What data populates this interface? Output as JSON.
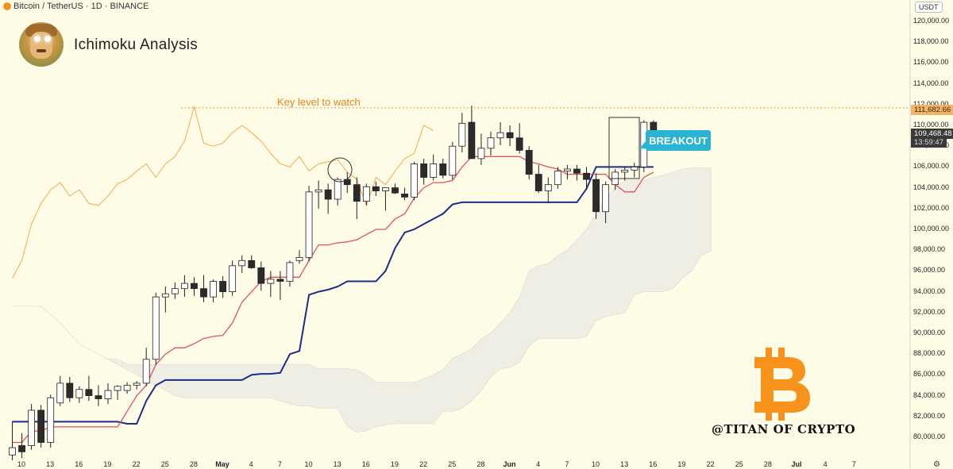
{
  "header": {
    "symbol": "Bitcoin / TetherUS · 1D · BINANCE"
  },
  "title": "Ichimoku Analysis",
  "annotations": {
    "key_level": "Key level to watch",
    "breakout": "BREAKOUT",
    "watermark": "@TITAN OF CRYPTO"
  },
  "axis_unit": "USDT",
  "colors": {
    "background": "#fefbe6",
    "bull_body": "#ffffff",
    "bear_body": "#2b2b2b",
    "tenkan": "#e0506b",
    "kijun": "#1c2d8a",
    "chikou": "#f5ab4e",
    "cloud": "#efeee4",
    "key_level": "#e5851c",
    "breakout": "#2ab4d4",
    "bitcoin_logo": "#f7931a"
  },
  "price_tags": {
    "key_level": "111,682.66",
    "current": "109,468.48",
    "countdown": "13:59:47"
  },
  "chart_data": {
    "type": "candlestick",
    "ylim": [
      78000,
      122000
    ],
    "y_ticks": [
      "80,000.00",
      "82,000.00",
      "84,000.00",
      "86,000.00",
      "88,000.00",
      "90,000.00",
      "92,000.00",
      "94,000.00",
      "96,000.00",
      "98,000.00",
      "100,000.00",
      "102,000.00",
      "104,000.00",
      "106,000.00",
      "108,000.00",
      "110,000.00",
      "112,000.00",
      "114,000.00",
      "116,000.00",
      "118,000.00",
      "120,000.00"
    ],
    "x_ticks": [
      "10",
      "13",
      "16",
      "19",
      "22",
      "25",
      "28",
      "May",
      "4",
      "7",
      "10",
      "13",
      "16",
      "19",
      "22",
      "25",
      "28",
      "Jun",
      "4",
      "7",
      "10",
      "13",
      "16",
      "19",
      "22",
      "25",
      "28",
      "Jul",
      "4",
      "7"
    ],
    "key_level": 111682.66,
    "candles": [
      {
        "o": 78300,
        "h": 81500,
        "l": 77800,
        "c": 79000
      },
      {
        "o": 79200,
        "h": 80400,
        "l": 78000,
        "c": 78600
      },
      {
        "o": 79200,
        "h": 83200,
        "l": 78800,
        "c": 82600
      },
      {
        "o": 82600,
        "h": 83100,
        "l": 79000,
        "c": 79500
      },
      {
        "o": 79500,
        "h": 84100,
        "l": 79000,
        "c": 83800
      },
      {
        "o": 83300,
        "h": 85900,
        "l": 83000,
        "c": 85200
      },
      {
        "o": 85200,
        "h": 85800,
        "l": 83400,
        "c": 83800
      },
      {
        "o": 83800,
        "h": 84900,
        "l": 83300,
        "c": 84600
      },
      {
        "o": 84600,
        "h": 85900,
        "l": 83500,
        "c": 84000
      },
      {
        "o": 84000,
        "h": 85000,
        "l": 83000,
        "c": 83700
      },
      {
        "o": 83700,
        "h": 85200,
        "l": 83200,
        "c": 84500
      },
      {
        "o": 84500,
        "h": 85000,
        "l": 83600,
        "c": 84900
      },
      {
        "o": 84500,
        "h": 85300,
        "l": 84200,
        "c": 85000
      },
      {
        "o": 85000,
        "h": 85400,
        "l": 84600,
        "c": 85200
      },
      {
        "o": 85200,
        "h": 88600,
        "l": 84900,
        "c": 87500
      },
      {
        "o": 87500,
        "h": 93900,
        "l": 87000,
        "c": 93500
      },
      {
        "o": 93500,
        "h": 94500,
        "l": 92000,
        "c": 93800
      },
      {
        "o": 93800,
        "h": 94900,
        "l": 93300,
        "c": 94300
      },
      {
        "o": 94300,
        "h": 95600,
        "l": 93500,
        "c": 94800
      },
      {
        "o": 94800,
        "h": 95400,
        "l": 93600,
        "c": 94300
      },
      {
        "o": 94300,
        "h": 95600,
        "l": 93000,
        "c": 93500
      },
      {
        "o": 93500,
        "h": 95200,
        "l": 93000,
        "c": 95000
      },
      {
        "o": 95000,
        "h": 95500,
        "l": 93400,
        "c": 94000
      },
      {
        "o": 94000,
        "h": 97000,
        "l": 93600,
        "c": 96500
      },
      {
        "o": 96500,
        "h": 97500,
        "l": 95800,
        "c": 97000
      },
      {
        "o": 97000,
        "h": 97500,
        "l": 96200,
        "c": 96300
      },
      {
        "o": 96300,
        "h": 96900,
        "l": 94100,
        "c": 94800
      },
      {
        "o": 94800,
        "h": 96000,
        "l": 93500,
        "c": 95200
      },
      {
        "o": 95200,
        "h": 96000,
        "l": 93200,
        "c": 95000
      },
      {
        "o": 95000,
        "h": 97000,
        "l": 94500,
        "c": 96800
      },
      {
        "o": 97000,
        "h": 98000,
        "l": 96700,
        "c": 97300
      },
      {
        "o": 97300,
        "h": 104200,
        "l": 96900,
        "c": 103600
      },
      {
        "o": 103600,
        "h": 104700,
        "l": 102000,
        "c": 103800
      },
      {
        "o": 103800,
        "h": 104400,
        "l": 101500,
        "c": 102900
      },
      {
        "o": 102900,
        "h": 105000,
        "l": 102300,
        "c": 104800
      },
      {
        "o": 104800,
        "h": 105500,
        "l": 103500,
        "c": 104300
      },
      {
        "o": 104300,
        "h": 105000,
        "l": 101000,
        "c": 102700
      },
      {
        "o": 102700,
        "h": 104400,
        "l": 102300,
        "c": 104100
      },
      {
        "o": 104100,
        "h": 104600,
        "l": 103200,
        "c": 103700
      },
      {
        "o": 103700,
        "h": 104000,
        "l": 101800,
        "c": 104000
      },
      {
        "o": 104000,
        "h": 104400,
        "l": 103400,
        "c": 103500
      },
      {
        "o": 103400,
        "h": 104000,
        "l": 102800,
        "c": 103100
      },
      {
        "o": 103100,
        "h": 106500,
        "l": 102800,
        "c": 106300
      },
      {
        "o": 106300,
        "h": 106800,
        "l": 104300,
        "c": 105000
      },
      {
        "o": 105000,
        "h": 107200,
        "l": 104700,
        "c": 106300
      },
      {
        "o": 106300,
        "h": 106800,
        "l": 104900,
        "c": 105200
      },
      {
        "o": 105200,
        "h": 108400,
        "l": 104800,
        "c": 108000
      },
      {
        "o": 108000,
        "h": 111200,
        "l": 107400,
        "c": 110200
      },
      {
        "o": 110300,
        "h": 111900,
        "l": 106800,
        "c": 106800
      },
      {
        "o": 106800,
        "h": 109200,
        "l": 106200,
        "c": 107800
      },
      {
        "o": 107800,
        "h": 109400,
        "l": 107100,
        "c": 108800
      },
      {
        "o": 108800,
        "h": 110300,
        "l": 108100,
        "c": 109300
      },
      {
        "o": 109300,
        "h": 110000,
        "l": 108000,
        "c": 108800
      },
      {
        "o": 108800,
        "h": 110200,
        "l": 107300,
        "c": 107600
      },
      {
        "o": 107600,
        "h": 108000,
        "l": 104800,
        "c": 105300
      },
      {
        "o": 105300,
        "h": 106200,
        "l": 103500,
        "c": 103700
      },
      {
        "o": 103700,
        "h": 105000,
        "l": 102500,
        "c": 104300
      },
      {
        "o": 104300,
        "h": 106000,
        "l": 103900,
        "c": 105600
      },
      {
        "o": 105600,
        "h": 106200,
        "l": 104800,
        "c": 105800
      },
      {
        "o": 105800,
        "h": 106200,
        "l": 104700,
        "c": 105400
      },
      {
        "o": 105400,
        "h": 106000,
        "l": 103800,
        "c": 104800
      },
      {
        "o": 104800,
        "h": 105400,
        "l": 101000,
        "c": 101700
      },
      {
        "o": 101700,
        "h": 104600,
        "l": 100600,
        "c": 104300
      },
      {
        "o": 104300,
        "h": 105800,
        "l": 103800,
        "c": 105500
      },
      {
        "o": 105500,
        "h": 106000,
        "l": 104700,
        "c": 105700
      },
      {
        "o": 105700,
        "h": 106400,
        "l": 105000,
        "c": 106000
      },
      {
        "o": 106000,
        "h": 110500,
        "l": 105500,
        "c": 110300
      },
      {
        "o": 110300,
        "h": 110500,
        "l": 109300,
        "c": 109500
      }
    ],
    "tenkan": [
      79500,
      79500,
      80600,
      80600,
      81000,
      81000,
      81000,
      81000,
      81000,
      81000,
      81000,
      81000,
      82500,
      84000,
      85000,
      87000,
      88000,
      88600,
      88600,
      89000,
      89500,
      89700,
      89800,
      91000,
      93000,
      94000,
      95000,
      95400,
      95400,
      95400,
      95400,
      97000,
      98500,
      98500,
      98700,
      98800,
      99000,
      99500,
      100000,
      100000,
      101000,
      101500,
      103000,
      104000,
      104500,
      104500,
      104700,
      106000,
      107000,
      107000,
      107000,
      107000,
      107000,
      107000,
      106500,
      106300,
      106000,
      105800,
      105300,
      105300,
      105300,
      105300,
      105300,
      104300,
      103600,
      103600,
      105000,
      105500
    ],
    "kijun": [
      81500,
      81500,
      81500,
      81500,
      81500,
      81500,
      81500,
      81500,
      81500,
      81500,
      81500,
      81500,
      81300,
      81300,
      83500,
      85000,
      85500,
      85500,
      85500,
      85500,
      85500,
      85500,
      85500,
      85500,
      85500,
      86000,
      86100,
      86100,
      86200,
      88000,
      88300,
      93700,
      94000,
      94200,
      94500,
      95000,
      95000,
      95000,
      95000,
      96000,
      98200,
      99700,
      100000,
      100500,
      101000,
      101500,
      102400,
      102600,
      102600,
      102600,
      102600,
      102600,
      102600,
      102600,
      102600,
      102600,
      102600,
      102600,
      102600,
      102600,
      103900,
      106000,
      106000,
      106000,
      106000,
      106000,
      106000,
      106000
    ],
    "chikou": [
      95300,
      97000,
      100500,
      102500,
      103800,
      104500,
      103200,
      103800,
      102500,
      102300,
      103200,
      104400,
      104800,
      105600,
      106300,
      105000,
      106300,
      107000,
      108500,
      111800,
      108300,
      108000,
      108300,
      109300,
      110000,
      109300,
      108500,
      107300,
      106300,
      106000,
      107000,
      105600,
      106300,
      106500,
      106700,
      105500,
      104800,
      102300,
      105000,
      104300,
      105600,
      106800,
      107300,
      110000,
      109500
    ],
    "cloud_top": [
      92600,
      92600,
      92600,
      92600,
      91800,
      91000,
      90000,
      89000,
      88500,
      88000,
      87500,
      87500,
      87000,
      87000,
      87000,
      87000,
      87000,
      87000,
      87000,
      87000,
      87000,
      87000,
      87000,
      87000,
      87000,
      87000,
      87000,
      87000,
      87000,
      87000,
      87000,
      87000,
      86600,
      86600,
      86600,
      86600,
      86500,
      86000,
      85300,
      85300,
      85300,
      85300,
      85300,
      85600,
      86000,
      86500,
      87600,
      88000,
      88500,
      89500,
      90000,
      91000,
      92000,
      93500,
      96000,
      96500,
      96700,
      97500,
      98000,
      99000,
      100000,
      101500,
      103000,
      104000,
      104700,
      104700,
      104700,
      105000,
      105200,
      105500,
      105800,
      105900,
      105900,
      105900
    ],
    "cloud_bottom": [
      92600,
      92600,
      92600,
      92600,
      91800,
      91000,
      90000,
      89000,
      88500,
      88000,
      87500,
      87000,
      86500,
      86000,
      85500,
      85000,
      84500,
      84000,
      83800,
      83800,
      83800,
      83800,
      83800,
      83800,
      83800,
      83800,
      83800,
      83800,
      83500,
      83200,
      83000,
      83000,
      82800,
      82800,
      82800,
      81000,
      80500,
      80600,
      81000,
      81200,
      81300,
      81300,
      81300,
      81300,
      81300,
      82500,
      82500,
      82800,
      83500,
      84500,
      85800,
      86600,
      86700,
      87200,
      88800,
      89500,
      89500,
      89500,
      89500,
      89500,
      89700,
      91200,
      91600,
      91800,
      92000,
      93700,
      94000,
      94000,
      94000,
      94300,
      95300,
      96000,
      97500,
      97900
    ]
  }
}
